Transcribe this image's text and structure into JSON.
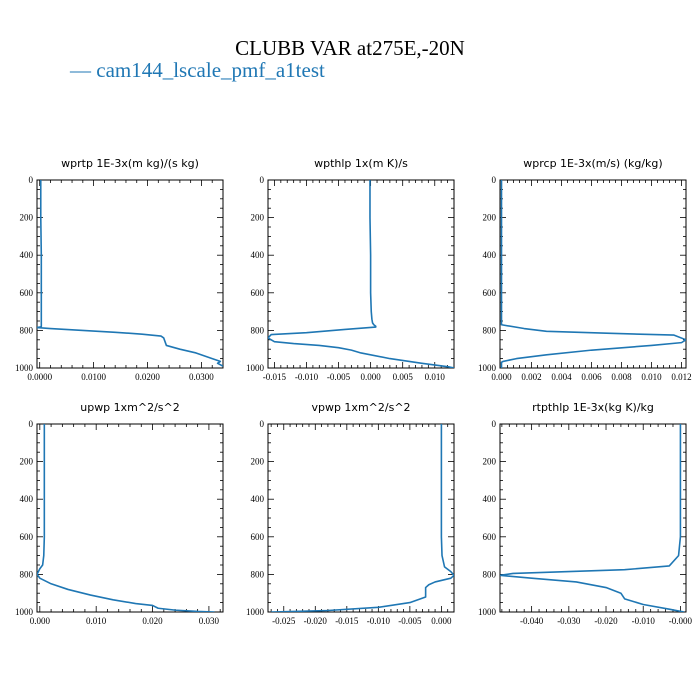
{
  "title": "CLUBB VAR at275E,-20N",
  "legend": {
    "label": "cam144_lscale_pmf_a1test",
    "color": "#1f77b4"
  },
  "chart_data": [
    {
      "type": "line",
      "title": "wprtp  1E-3x(m kg)/(s kg)",
      "xlim": [
        -0.0005,
        0.034
      ],
      "ylim": [
        1000,
        0
      ],
      "xticks": [
        0.0,
        0.01,
        0.02,
        0.03
      ],
      "xticklabels": [
        "0.0000",
        "0.0100",
        "0.0200",
        "0.0300"
      ],
      "yticks": [
        0,
        200,
        400,
        600,
        800,
        1000
      ],
      "series": [
        {
          "color": "#1f77b4",
          "x": [
            0.0002,
            0.0002,
            0.0003,
            0.0003,
            0.0003,
            0.0003,
            0.0003,
            0.0003,
            0.0,
            -0.0005,
            0.002,
            0.008,
            0.014,
            0.019,
            0.0225,
            0.023,
            0.0235,
            0.026,
            0.029,
            0.031,
            0.032,
            0.0335,
            0.033,
            0.034
          ],
          "y": [
            0,
            200,
            400,
            600,
            700,
            760,
            775,
            780,
            782,
            785,
            790,
            800,
            810,
            820,
            830,
            840,
            880,
            900,
            920,
            940,
            950,
            965,
            975,
            990
          ]
        }
      ]
    },
    {
      "type": "line",
      "title": "wpthlp  1x(m K)/s",
      "xlim": [
        -0.016,
        0.013
      ],
      "ylim": [
        1000,
        0
      ],
      "xticks": [
        -0.015,
        -0.01,
        -0.005,
        0.0,
        0.005,
        0.01
      ],
      "xticklabels": [
        "-0.015",
        "-0.010",
        "-0.005",
        "0.000",
        "0.005",
        "0.010"
      ],
      "yticks": [
        0,
        200,
        400,
        600,
        800,
        1000
      ],
      "series": [
        {
          "color": "#1f77b4",
          "x": [
            -0.0001,
            -0.0001,
            0.0,
            0.0,
            0.0001,
            0.0002,
            0.0003,
            0.0005,
            0.0008,
            0.0008,
            -0.004,
            -0.01,
            -0.0155,
            -0.016,
            -0.015,
            -0.012,
            -0.008,
            -0.005,
            -0.003,
            -0.0015,
            0.003,
            0.008,
            0.012,
            0.013
          ],
          "y": [
            0,
            200,
            400,
            600,
            700,
            740,
            760,
            770,
            778,
            782,
            795,
            812,
            822,
            840,
            860,
            870,
            880,
            892,
            905,
            920,
            950,
            975,
            993,
            1000
          ]
        }
      ]
    },
    {
      "type": "line",
      "title": "wprcp  1E-3x(m/s) (kg/kg)",
      "xlim": [
        -0.0001,
        0.0123
      ],
      "ylim": [
        1000,
        0
      ],
      "xticks": [
        0.0,
        0.002,
        0.004,
        0.006,
        0.008,
        0.01,
        0.012
      ],
      "xticklabels": [
        "0.000",
        "0.002",
        "0.004",
        "0.006",
        "0.008",
        "0.010",
        "0.012"
      ],
      "yticks": [
        0,
        200,
        400,
        600,
        800,
        1000
      ],
      "series": [
        {
          "color": "#1f77b4",
          "x": [
            0.0,
            0.0,
            0.0,
            0.0,
            0.0,
            0.0,
            0.0015,
            0.003,
            0.007,
            0.0115,
            0.0123,
            0.012,
            0.01,
            0.006,
            0.003,
            0.001,
            0.0001,
            0.0,
            0.0,
            0.0
          ],
          "y": [
            0,
            200,
            400,
            600,
            700,
            770,
            790,
            805,
            815,
            825,
            850,
            865,
            880,
            905,
            930,
            950,
            965,
            970,
            985,
            1000
          ]
        }
      ]
    },
    {
      "type": "line",
      "title": "upwp  1xm^2/s^2",
      "xlim": [
        -0.0005,
        0.0325
      ],
      "ylim": [
        1000,
        0
      ],
      "xticks": [
        0.0,
        0.01,
        0.02,
        0.03
      ],
      "xticklabels": [
        "0.000",
        "0.010",
        "0.020",
        "0.030"
      ],
      "yticks": [
        0,
        200,
        400,
        600,
        800,
        1000
      ],
      "series": [
        {
          "color": "#1f77b4",
          "x": [
            0.0008,
            0.0008,
            0.0008,
            0.0008,
            0.0007,
            0.0005,
            0.0,
            -0.0005,
            0.0,
            0.002,
            0.005,
            0.009,
            0.013,
            0.017,
            0.02,
            0.021,
            0.024,
            0.028,
            0.031
          ],
          "y": [
            0,
            200,
            400,
            600,
            700,
            750,
            770,
            800,
            820,
            850,
            880,
            910,
            935,
            955,
            965,
            980,
            990,
            997,
            1000
          ]
        }
      ]
    },
    {
      "type": "line",
      "title": "vpwp  1xm^2/s^2",
      "xlim": [
        -0.0275,
        0.002
      ],
      "ylim": [
        1000,
        0
      ],
      "xticks": [
        -0.025,
        -0.02,
        -0.015,
        -0.01,
        -0.005,
        0.0
      ],
      "xticklabels": [
        "-0.025",
        "-0.020",
        "-0.015",
        "-0.010",
        "-0.005",
        "0.000"
      ],
      "yticks": [
        0,
        200,
        400,
        600,
        800,
        1000
      ],
      "series": [
        {
          "color": "#1f77b4",
          "x": [
            0.0,
            0.0,
            0.0,
            0.0,
            0.0001,
            0.0005,
            0.0015,
            0.002,
            0.0015,
            -0.001,
            -0.002,
            -0.0025,
            -0.0025,
            -0.005,
            -0.01,
            -0.018,
            -0.027
          ],
          "y": [
            0,
            200,
            400,
            600,
            700,
            760,
            785,
            805,
            820,
            840,
            855,
            870,
            920,
            950,
            975,
            992,
            1000
          ]
        }
      ]
    },
    {
      "type": "line",
      "title": "rtpthlp  1E-3x(kg K)/kg",
      "xlim": [
        -0.0485,
        0.0015
      ],
      "ylim": [
        1000,
        0
      ],
      "xticks": [
        -0.04,
        -0.03,
        -0.02,
        -0.01,
        0.0
      ],
      "xticklabels": [
        "-0.040",
        "-0.030",
        "-0.020",
        "-0.010",
        "-0.000"
      ],
      "yticks": [
        0,
        200,
        400,
        600,
        800,
        1000
      ],
      "series": [
        {
          "color": "#1f77b4",
          "x": [
            0.0,
            0.0,
            0.0,
            0.0,
            -0.0005,
            -0.003,
            -0.015,
            -0.03,
            -0.045,
            -0.0485,
            -0.04,
            -0.028,
            -0.02,
            -0.016,
            -0.015,
            -0.01,
            -0.003,
            0.001
          ],
          "y": [
            0,
            200,
            400,
            600,
            700,
            755,
            775,
            785,
            795,
            805,
            820,
            840,
            870,
            900,
            930,
            960,
            985,
            1000
          ]
        }
      ]
    }
  ]
}
